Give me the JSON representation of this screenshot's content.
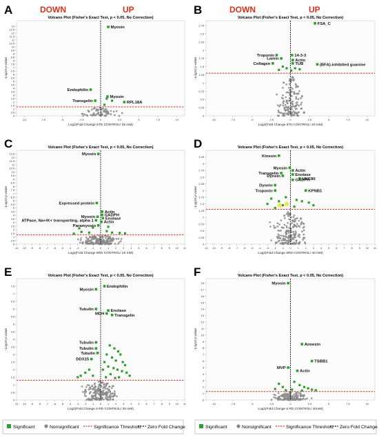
{
  "header": {
    "down": "DOWN",
    "up": "UP"
  },
  "legend": {
    "left": [
      {
        "label": "Significant",
        "kind": "square",
        "color": "#2e9e2e"
      },
      {
        "label": "Nonsignificant",
        "kind": "dot",
        "color": "#888888"
      },
      {
        "label": "Significance Threshold",
        "kind": "redline",
        "color": "#e0301e"
      },
      {
        "label": "Zero Fold Change",
        "kind": "blackline",
        "color": "#111111"
      }
    ],
    "right": [
      {
        "label": "Significant",
        "kind": "square",
        "color": "#2e9e2e"
      },
      {
        "label": "Nonsignificant",
        "kind": "dot",
        "color": "#888888"
      },
      {
        "label": "Significance Threshold",
        "kind": "redline",
        "color": "#e0301e"
      },
      {
        "label": "Zero Fold Change",
        "kind": "blackline",
        "color": "#111111"
      }
    ]
  },
  "colors": {
    "significant": "#2e9e2e",
    "nonsignificant": "#8a8a8a",
    "threshold": "#e0301e",
    "zero": "#111111",
    "highlight": "#e8e23a",
    "updown": "#e0301e"
  },
  "chart_data": [
    {
      "panel": "A",
      "type": "scatter",
      "title": "Volcano Plot (Fisher's Exact Test, p < 0.05, No Correction)",
      "xlabel": "Log2(Fold Change    6TD CONTROL/ 25 mM)",
      "ylabel": "-Log10 p-value",
      "xlim": [
        -11,
        11
      ],
      "ylim": [
        0,
        13.8
      ],
      "threshold": 1.3,
      "xticks": [
        -10,
        -7.5,
        -5,
        -2.5,
        0,
        2.5,
        5,
        7.5,
        10
      ],
      "yticks": [
        0,
        0.5,
        1,
        1.5,
        2,
        2.5,
        3,
        3.5,
        4,
        4.5,
        5,
        5.5,
        6,
        6.5,
        7,
        7.5,
        8,
        8.5,
        9,
        9.5,
        10,
        10.5,
        11,
        11.5,
        12,
        12.5,
        13
      ],
      "labeled": [
        {
          "x": 1.0,
          "y": 12.9,
          "label": "Myosin",
          "pos": "right"
        },
        {
          "x": -1.3,
          "y": 3.8,
          "label": "Endophilin",
          "pos": "left"
        },
        {
          "x": 0.9,
          "y": 2.8,
          "label": "Myosin",
          "pos": "right"
        },
        {
          "x": -0.7,
          "y": 2.2,
          "label": "Transgelin",
          "pos": "left"
        },
        {
          "x": 3.1,
          "y": 2.0,
          "label": "RPL18A",
          "pos": "right"
        }
      ],
      "sig_points": [
        [
          0.8,
          2.5
        ],
        [
          1.5,
          2.2
        ],
        [
          0.5,
          1.6
        ]
      ],
      "non_count": 70,
      "non_xspread": 3.0,
      "non_ymax": 1.25
    },
    {
      "panel": "B",
      "type": "scatter",
      "title": "Volcano Plot (Fisher's Exact Test, p < 0.05, No Correction)",
      "xlabel": "Log2(Fold Change    6TD CONTROL/ 40 mM)",
      "ylabel": "-Log10 p-value",
      "xlim": [
        -11,
        11
      ],
      "ylim": [
        0,
        2.9
      ],
      "threshold": 1.3,
      "xticks": [
        -10,
        -7.5,
        -5,
        -2.5,
        0,
        2.5,
        5,
        7.5,
        10
      ],
      "yticks": [
        0,
        0.25,
        0.5,
        0.75,
        1,
        1.25,
        1.5,
        1.75,
        2,
        2.25,
        2.5,
        2.75
      ],
      "labeled": [
        {
          "x": 3.2,
          "y": 2.82,
          "label": "FSA_C",
          "pos": "right"
        },
        {
          "x": -1.8,
          "y": 1.85,
          "label": "Troponin",
          "pos": "left"
        },
        {
          "x": 0.2,
          "y": 1.85,
          "label": "14-3-3",
          "pos": "right"
        },
        {
          "x": -1.2,
          "y": 1.75,
          "label": "Lamin",
          "pos": "left"
        },
        {
          "x": 0.3,
          "y": 1.7,
          "label": "Actin",
          "pos": "right"
        },
        {
          "x": 0.3,
          "y": 1.6,
          "label": "TUB",
          "pos": "right"
        },
        {
          "x": -2.3,
          "y": 1.6,
          "label": "Collagen",
          "pos": "left"
        },
        {
          "x": 3.5,
          "y": 1.57,
          "label": "(BFA)-inhibited guanine",
          "pos": "right"
        }
      ],
      "sig_points": [
        [
          -1.0,
          1.5
        ],
        [
          -0.5,
          1.45
        ],
        [
          0.6,
          1.45
        ],
        [
          1.2,
          1.42
        ],
        [
          -1.5,
          1.4
        ],
        [
          0.1,
          1.38
        ]
      ],
      "non_count": 160,
      "non_xspread": 2.2,
      "non_ymax": 1.25
    },
    {
      "panel": "C",
      "type": "scatter",
      "title": "Volcano Plot (Fisher's Exact Test, p < 0.05, No Correction)",
      "xlabel": "Log2(Fold Change    5RD CONTROL/ 25 mM)",
      "ylabel": "-Log10 p-value",
      "xlim": [
        -11,
        11
      ],
      "ylim": [
        0,
        13
      ],
      "threshold": 1.3,
      "xticks": [
        -11,
        -10,
        -9,
        -8,
        -7,
        -6,
        -5,
        -4,
        -3,
        -2,
        -1,
        0,
        1,
        2,
        3,
        4,
        5,
        6,
        7,
        8,
        9,
        10,
        11
      ],
      "yticks": [
        0,
        0.5,
        1,
        1.5,
        2,
        2.5,
        3,
        3.5,
        4,
        4.5,
        5,
        5.5,
        6,
        6.5,
        7,
        7.5,
        8,
        8.5,
        9,
        9.5,
        10,
        10.5,
        11,
        11.5,
        12,
        12.5
      ],
      "labeled": [
        {
          "x": -0.3,
          "y": 12.5,
          "label": "Myosin",
          "pos": "left"
        },
        {
          "x": -0.5,
          "y": 5.7,
          "label": "Expressed protein",
          "pos": "left"
        },
        {
          "x": 0.2,
          "y": 4.5,
          "label": "Actin",
          "pos": "right"
        },
        {
          "x": 0.2,
          "y": 4.05,
          "label": "GADPH",
          "pos": "right"
        },
        {
          "x": -0.4,
          "y": 3.8,
          "label": "Myosin",
          "pos": "left"
        },
        {
          "x": 0.3,
          "y": 3.6,
          "label": "Enolase",
          "pos": "right"
        },
        {
          "x": -0.6,
          "y": 3.3,
          "label": "ATPase, Na+/K+ transporting, alpha 1",
          "pos": "left"
        },
        {
          "x": 0.1,
          "y": 3.1,
          "label": "Actin",
          "pos": "right"
        },
        {
          "x": -0.3,
          "y": 2.6,
          "label": "Paramyosin",
          "pos": "left"
        }
      ],
      "sig_points": [
        [
          -2.8,
          2.2
        ],
        [
          -2.5,
          1.7
        ],
        [
          -1.5,
          1.6
        ],
        [
          0.8,
          1.8
        ],
        [
          1.5,
          1.6
        ],
        [
          2.5,
          1.55
        ],
        [
          3.2,
          1.5
        ],
        [
          -3.5,
          1.45
        ],
        [
          1.0,
          2.4
        ],
        [
          -1.0,
          2.3
        ]
      ],
      "non_count": 180,
      "non_xspread": 3.5,
      "non_ymax": 1.25
    },
    {
      "panel": "D",
      "type": "scatter",
      "title": "Volcano Plot (Fisher's Exact Test, p < 0.05, No Correction)",
      "xlabel": "Log2(Fold Change    5RD CONTROL/ 40 mM)",
      "ylabel": "-Log10 p-value",
      "xlim": [
        -11,
        11
      ],
      "ylim": [
        0,
        3.5
      ],
      "threshold": 1.3,
      "xticks": [
        -11,
        -10,
        -9,
        -8,
        -7,
        -6,
        -5,
        -4,
        -3,
        -2,
        -1,
        0,
        1,
        2,
        3,
        4,
        5,
        6,
        7,
        8,
        9,
        10,
        11
      ],
      "yticks": [
        0,
        0.25,
        0.5,
        0.75,
        1,
        1.25,
        1.5,
        1.75,
        2,
        2.25,
        2.5,
        2.75,
        3,
        3.25
      ],
      "labeled": [
        {
          "x": -1.5,
          "y": 3.3,
          "label": "Kinesin",
          "pos": "left"
        },
        {
          "x": -0.1,
          "y": 2.85,
          "label": "Myosin",
          "pos": "left"
        },
        {
          "x": 0.3,
          "y": 2.75,
          "label": "Actin",
          "pos": "right"
        },
        {
          "x": -1.2,
          "y": 2.65,
          "label": "Transgelin",
          "pos": "left"
        },
        {
          "x": 0.3,
          "y": 2.6,
          "label": "Enolase",
          "pos": "right"
        },
        {
          "x": -1.0,
          "y": 2.55,
          "label": "Dynein",
          "pos": "left"
        },
        {
          "x": 1.2,
          "y": 2.45,
          "label": "UNC80",
          "pos": "right"
        },
        {
          "x": 0.3,
          "y": 2.4,
          "label": "GADPH",
          "pos": "right"
        },
        {
          "x": -2.0,
          "y": 2.2,
          "label": "Dynein",
          "pos": "left"
        },
        {
          "x": -2.0,
          "y": 2.0,
          "label": "Troponin",
          "pos": "left"
        },
        {
          "x": 2.0,
          "y": 2.0,
          "label": "KPNB1",
          "pos": "right"
        }
      ],
      "sig_points": [
        [
          -2.5,
          1.7
        ],
        [
          -1.5,
          1.6
        ],
        [
          -0.6,
          1.75
        ],
        [
          0.8,
          1.65
        ],
        [
          1.5,
          1.6
        ],
        [
          2.4,
          1.55
        ],
        [
          -3.0,
          1.5
        ],
        [
          3.0,
          1.45
        ],
        [
          -1.0,
          1.45
        ],
        [
          0.5,
          1.4
        ],
        [
          -2.0,
          1.35
        ]
      ],
      "highlights": [
        [
          -0.5,
          1.5
        ],
        [
          -1.4,
          1.45
        ]
      ],
      "non_count": 200,
      "non_xspread": 3.0,
      "non_ymax": 1.25
    },
    {
      "panel": "E",
      "type": "scatter",
      "title": "Volcano Plot (Fisher's Exact Test, p < 0.05, No Correction)",
      "xlabel": "Log2(Fold Change    6 RD CONTROL/ 25 mM)",
      "ylabel": "-Log10 p-value",
      "xlim": [
        -11,
        11
      ],
      "ylim": [
        0,
        8
      ],
      "threshold": 1.3,
      "xticks": [
        -11,
        -10,
        -9,
        -8,
        -7,
        -6,
        -5,
        -4,
        -3,
        -2,
        -1,
        0,
        1,
        2,
        3,
        4,
        5,
        6,
        7,
        8,
        9,
        10,
        11
      ],
      "yticks": [
        0,
        0.5,
        1,
        1.5,
        2,
        2.5,
        3,
        3.5,
        4,
        4.5,
        5,
        5.5,
        6,
        6.5,
        7,
        7.5
      ],
      "labeled": [
        {
          "x": 0.5,
          "y": 7.5,
          "label": "Endophilin",
          "pos": "right"
        },
        {
          "x": -0.6,
          "y": 7.3,
          "label": "Myosin",
          "pos": "left"
        },
        {
          "x": -0.6,
          "y": 6.0,
          "label": "Tubulin",
          "pos": "left"
        },
        {
          "x": 1.0,
          "y": 5.9,
          "label": "Enolase",
          "pos": "right"
        },
        {
          "x": 0.8,
          "y": 5.7,
          "label": "MDH",
          "pos": "left"
        },
        {
          "x": 1.5,
          "y": 5.6,
          "label": "Transgelin",
          "pos": "right"
        },
        {
          "x": -0.6,
          "y": 3.8,
          "label": "Tubulin",
          "pos": "left"
        },
        {
          "x": -0.6,
          "y": 3.4,
          "label": "Tubulin",
          "pos": "left"
        },
        {
          "x": -0.4,
          "y": 3.1,
          "label": "Tubulin",
          "pos": "left"
        },
        {
          "x": -1.2,
          "y": 2.7,
          "label": "DDX15",
          "pos": "left"
        }
      ],
      "sig_points": [
        [
          1.2,
          3.6
        ],
        [
          1.8,
          3.4
        ],
        [
          2.3,
          3.2
        ],
        [
          2.6,
          3.0
        ],
        [
          0.8,
          3.0
        ],
        [
          1.5,
          2.8
        ],
        [
          2.0,
          2.6
        ],
        [
          2.9,
          2.5
        ],
        [
          3.2,
          2.3
        ],
        [
          0.5,
          2.5
        ],
        [
          1.0,
          2.2
        ],
        [
          1.7,
          2.1
        ],
        [
          2.2,
          2.0
        ],
        [
          2.8,
          1.9
        ],
        [
          3.4,
          1.8
        ],
        [
          3.8,
          1.6
        ],
        [
          0.3,
          2.0
        ],
        [
          1.3,
          1.7
        ],
        [
          -1.5,
          2.0
        ],
        [
          -2.0,
          1.8
        ],
        [
          -2.6,
          1.6
        ],
        [
          -1.0,
          1.6
        ],
        [
          -3.0,
          1.5
        ],
        [
          0.7,
          1.5
        ],
        [
          2.4,
          1.5
        ],
        [
          1.9,
          1.45
        ]
      ],
      "non_count": 200,
      "non_xspread": 3.0,
      "non_ymax": 1.25
    },
    {
      "panel": "F",
      "type": "scatter",
      "title": "Volcano Plot (Fisher's Exact Test, p < 0.05, No Correction)",
      "xlabel": "Log2(Fold Change    6 RD CONTROL/ 40mM)",
      "ylabel": "-Log10 p-value",
      "xlim": [
        -11,
        11
      ],
      "ylim": [
        0,
        18.7
      ],
      "threshold": 1.3,
      "xticks": [
        -10,
        -7.5,
        -5,
        -2.5,
        0,
        2.5,
        5,
        7.5,
        10
      ],
      "yticks": [
        0,
        1,
        2,
        3,
        4,
        5,
        6,
        7,
        8,
        9,
        10,
        11,
        12,
        13,
        14,
        15,
        16,
        17,
        18
      ],
      "labeled": [
        {
          "x": -0.3,
          "y": 18.0,
          "label": "Myosin",
          "pos": "left"
        },
        {
          "x": 1.5,
          "y": 8.6,
          "label": "Annexin",
          "pos": "right"
        },
        {
          "x": 2.8,
          "y": 6.0,
          "label": "TSBB1",
          "pos": "right"
        },
        {
          "x": -0.3,
          "y": 5.0,
          "label": "MVP",
          "pos": "left"
        },
        {
          "x": 0.9,
          "y": 4.5,
          "label": "Actin",
          "pos": "right"
        }
      ],
      "sig_points": [
        [
          -1.5,
          2.5
        ],
        [
          -1.0,
          2.0
        ],
        [
          0.5,
          2.8
        ],
        [
          1.2,
          2.3
        ],
        [
          1.8,
          2.0
        ],
        [
          2.3,
          1.8
        ],
        [
          2.8,
          1.6
        ],
        [
          3.3,
          1.5
        ],
        [
          -2.0,
          1.7
        ],
        [
          0.2,
          1.6
        ],
        [
          -0.6,
          1.5
        ],
        [
          1.5,
          1.45
        ]
      ],
      "non_count": 150,
      "non_xspread": 3.5,
      "non_ymax": 1.25
    }
  ]
}
